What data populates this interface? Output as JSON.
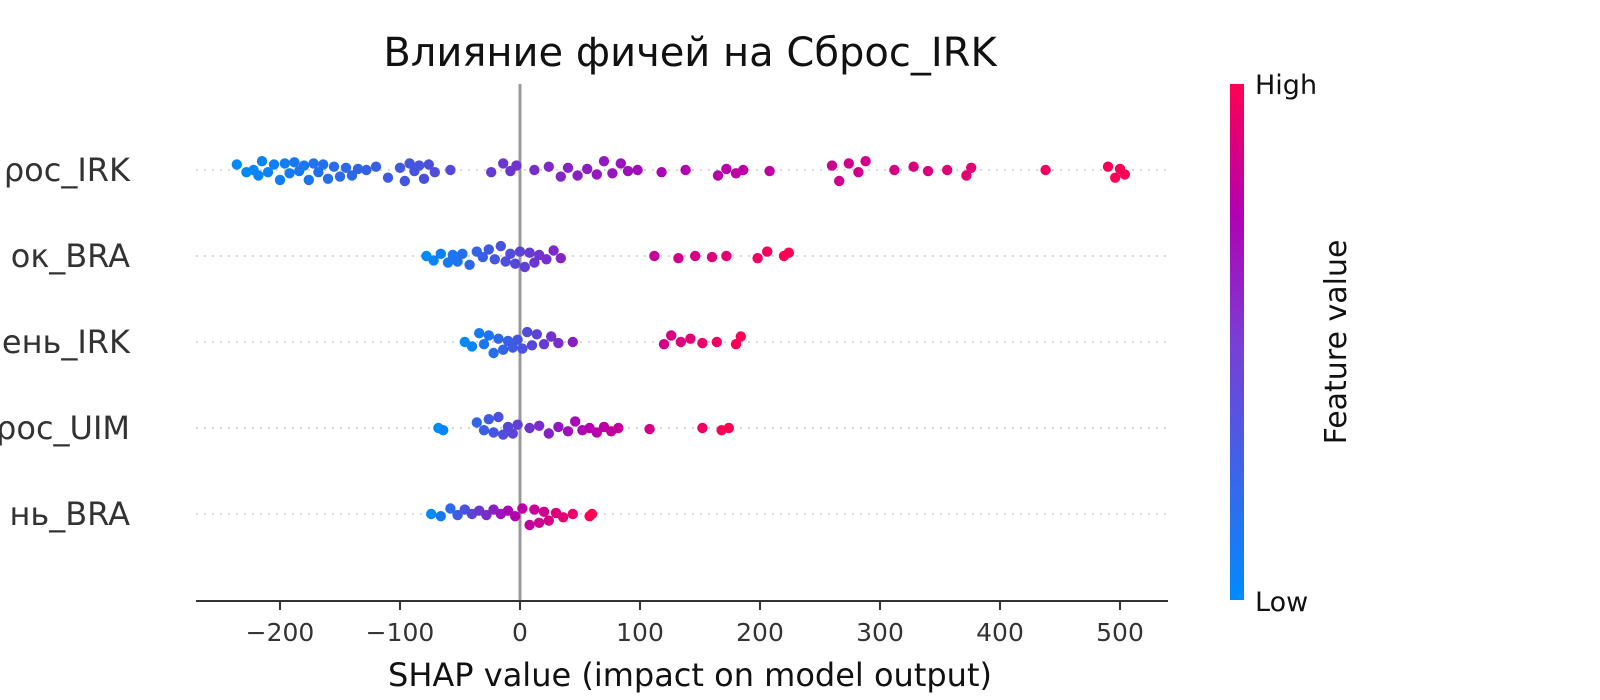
{
  "chart_data": {
    "type": "scatter",
    "title": "Влияние фичей на Сброс_IRK",
    "xlabel": "SHAP value (impact on model output)",
    "xlim": [
      -270,
      540
    ],
    "xticks": [
      -200,
      -100,
      0,
      100,
      200,
      300,
      400,
      500
    ],
    "xtick_labels": [
      "−200",
      "−100",
      "0",
      "100",
      "200",
      "300",
      "400",
      "500"
    ],
    "features": [
      {
        "label": "ρoc_IRK",
        "points": [
          [
            -236,
            0.05
          ],
          [
            -228,
            0.02
          ],
          [
            -222,
            0.0
          ],
          [
            -218,
            0.05
          ],
          [
            -215,
            0.08
          ],
          [
            -210,
            0.02
          ],
          [
            -205,
            0.05
          ],
          [
            -200,
            0.09
          ],
          [
            -196,
            0.06
          ],
          [
            -192,
            0.03
          ],
          [
            -188,
            0.07
          ],
          [
            -184,
            0.01
          ],
          [
            -180,
            0.04
          ],
          [
            -176,
            0.09
          ],
          [
            -172,
            0.06
          ],
          [
            -168,
            0.02
          ],
          [
            -164,
            0.05
          ],
          [
            -160,
            0.08
          ],
          [
            -155,
            0.03
          ],
          [
            -150,
            0.06
          ],
          [
            -145,
            0.02
          ],
          [
            -140,
            0.05
          ],
          [
            -135,
            0.01
          ],
          [
            -128,
            0.0
          ],
          [
            -120,
            0.03
          ],
          [
            -110,
            0.07
          ],
          [
            -100,
            0.02
          ],
          [
            -96,
            0.1
          ],
          [
            -92,
            0.06
          ],
          [
            -88,
            0.01
          ],
          [
            -84,
            0.04
          ],
          [
            -80,
            0.08
          ],
          [
            -76,
            0.05
          ],
          [
            -71,
            0.02
          ],
          [
            -58,
            0.0
          ],
          [
            -24,
            0.02
          ],
          [
            -14,
            0.06
          ],
          [
            -8,
            0.01
          ],
          [
            -3,
            0.04
          ],
          [
            12,
            0.0
          ],
          [
            24,
            0.03
          ],
          [
            34,
            0.06
          ],
          [
            40,
            0.02
          ],
          [
            48,
            0.05
          ],
          [
            56,
            0.01
          ],
          [
            64,
            0.04
          ],
          [
            70,
            0.08
          ],
          [
            77,
            0.03
          ],
          [
            84,
            0.06
          ],
          [
            90,
            0.01
          ],
          [
            98,
            0.0
          ],
          [
            118,
            0.02
          ],
          [
            138,
            0.0
          ],
          [
            165,
            0.05
          ],
          [
            172,
            0.01
          ],
          [
            180,
            0.03
          ],
          [
            186,
            0.0
          ],
          [
            208,
            0.01
          ],
          [
            260,
            0.04
          ],
          [
            266,
            0.1
          ],
          [
            274,
            0.06
          ],
          [
            282,
            0.02
          ],
          [
            288,
            0.08
          ],
          [
            312,
            0.0
          ],
          [
            328,
            0.03
          ],
          [
            340,
            0.01
          ],
          [
            356,
            0.0
          ],
          [
            372,
            0.05
          ],
          [
            376,
            0.02
          ],
          [
            438,
            0.0
          ],
          [
            490,
            0.03
          ],
          [
            496,
            0.07
          ],
          [
            500,
            0.01
          ],
          [
            504,
            0.04
          ]
        ]
      },
      {
        "label": "οκ_BRA",
        "points": [
          [
            -78,
            0.0
          ],
          [
            -72,
            0.04
          ],
          [
            -66,
            0.02
          ],
          [
            -60,
            0.06
          ],
          [
            -56,
            0.01
          ],
          [
            -52,
            0.05
          ],
          [
            -48,
            0.02
          ],
          [
            -42,
            0.08
          ],
          [
            -36,
            0.04
          ],
          [
            -31,
            0.01
          ],
          [
            -26,
            0.06
          ],
          [
            -21,
            0.03
          ],
          [
            -16,
            0.09
          ],
          [
            -12,
            0.05
          ],
          [
            -8,
            0.02
          ],
          [
            -4,
            0.07
          ],
          [
            0,
            0.04
          ],
          [
            4,
            0.1
          ],
          [
            8,
            0.03
          ],
          [
            12,
            0.06
          ],
          [
            16,
            0.01
          ],
          [
            22,
            0.03
          ],
          [
            28,
            0.05
          ],
          [
            34,
            0.02
          ],
          [
            112,
            0.0
          ],
          [
            132,
            0.02
          ],
          [
            146,
            0.0
          ],
          [
            160,
            0.01
          ],
          [
            172,
            0.0
          ],
          [
            198,
            0.02
          ],
          [
            206,
            0.04
          ],
          [
            220,
            0.0
          ],
          [
            224,
            0.03
          ]
        ]
      },
      {
        "label": "ень_IRK",
        "points": [
          [
            -46,
            0.0
          ],
          [
            -40,
            0.04
          ],
          [
            -34,
            0.08
          ],
          [
            -30,
            0.02
          ],
          [
            -26,
            0.06
          ],
          [
            -22,
            0.1
          ],
          [
            -18,
            0.03
          ],
          [
            -14,
            0.07
          ],
          [
            -10,
            0.01
          ],
          [
            -6,
            0.05
          ],
          [
            -2,
            0.02
          ],
          [
            2,
            0.06
          ],
          [
            6,
            0.09
          ],
          [
            10,
            0.03
          ],
          [
            14,
            0.07
          ],
          [
            20,
            0.02
          ],
          [
            26,
            0.05
          ],
          [
            32,
            0.01
          ],
          [
            44,
            0.0
          ],
          [
            120,
            0.02
          ],
          [
            126,
            0.06
          ],
          [
            134,
            0.0
          ],
          [
            142,
            0.03
          ],
          [
            152,
            0.01
          ],
          [
            164,
            0.0
          ],
          [
            180,
            0.02
          ],
          [
            184,
            0.05
          ]
        ]
      },
      {
        "label": "ρoc_UIM",
        "points": [
          [
            -68,
            0.0
          ],
          [
            -64,
            0.02
          ],
          [
            -36,
            0.05
          ],
          [
            -30,
            0.02
          ],
          [
            -26,
            0.08
          ],
          [
            -22,
            0.04
          ],
          [
            -18,
            0.1
          ],
          [
            -14,
            0.06
          ],
          [
            -10,
            0.01
          ],
          [
            -6,
            0.05
          ],
          [
            -2,
            0.03
          ],
          [
            8,
            0.0
          ],
          [
            16,
            0.02
          ],
          [
            24,
            0.05
          ],
          [
            32,
            0.01
          ],
          [
            40,
            0.03
          ],
          [
            46,
            0.06
          ],
          [
            52,
            0.02
          ],
          [
            58,
            0.0
          ],
          [
            64,
            0.04
          ],
          [
            70,
            0.01
          ],
          [
            76,
            0.03
          ],
          [
            82,
            0.0
          ],
          [
            108,
            0.01
          ],
          [
            152,
            0.0
          ],
          [
            168,
            0.02
          ],
          [
            174,
            0.0
          ]
        ]
      },
      {
        "label": "нь_BRA",
        "points": [
          [
            -74,
            0.0
          ],
          [
            -66,
            0.02
          ],
          [
            -58,
            0.05
          ],
          [
            -52,
            0.01
          ],
          [
            -46,
            0.04
          ],
          [
            -40,
            0.0
          ],
          [
            -34,
            0.03
          ],
          [
            -28,
            0.01
          ],
          [
            -22,
            0.04
          ],
          [
            -16,
            0.0
          ],
          [
            -10,
            0.03
          ],
          [
            -4,
            0.02
          ],
          [
            2,
            0.05
          ],
          [
            8,
            0.1
          ],
          [
            12,
            0.04
          ],
          [
            16,
            0.08
          ],
          [
            20,
            0.02
          ],
          [
            24,
            0.06
          ],
          [
            30,
            0.01
          ],
          [
            36,
            0.03
          ],
          [
            44,
            0.0
          ],
          [
            58,
            0.02
          ],
          [
            60,
            0.0
          ]
        ]
      }
    ],
    "colorbar": {
      "label": "Feature value",
      "high_label": "High",
      "low_label": "Low",
      "low_color": "#008bfb",
      "mid_color": "#b200b2",
      "high_color": "#ff0052"
    },
    "grid": false,
    "zero_line": true
  }
}
